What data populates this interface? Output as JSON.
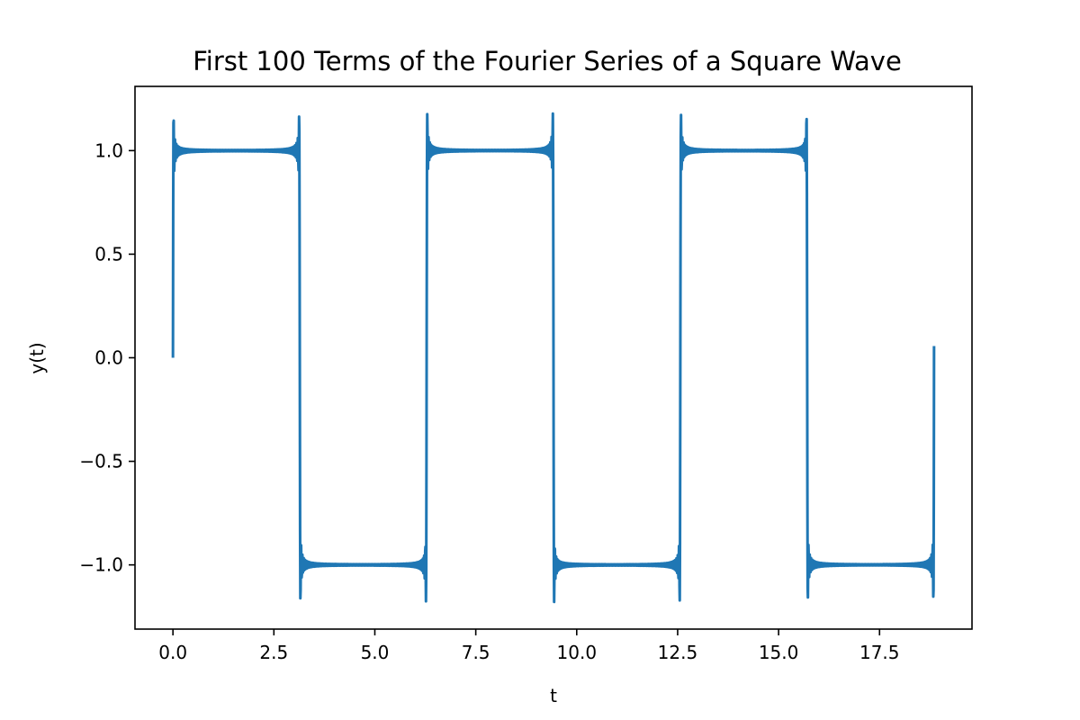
{
  "chart_data": {
    "type": "line",
    "title": "First 100 Terms of the Fourier Series of a Square Wave",
    "xlabel": "t",
    "ylabel": "y(t)",
    "xlim": [
      -0.94,
      19.79
    ],
    "ylim": [
      -1.31,
      1.31
    ],
    "x_ticks": [
      {
        "value": 0.0,
        "label": "0.0"
      },
      {
        "value": 2.5,
        "label": "2.5"
      },
      {
        "value": 5.0,
        "label": "5.0"
      },
      {
        "value": 7.5,
        "label": "7.5"
      },
      {
        "value": 10.0,
        "label": "10.0"
      },
      {
        "value": 12.5,
        "label": "12.5"
      },
      {
        "value": 15.0,
        "label": "15.0"
      },
      {
        "value": 17.5,
        "label": "17.5"
      }
    ],
    "y_ticks": [
      {
        "value": -1.0,
        "label": "−1.0"
      },
      {
        "value": -0.5,
        "label": "−0.5"
      },
      {
        "value": 0.0,
        "label": "0.0"
      },
      {
        "value": 0.5,
        "label": "0.5"
      },
      {
        "value": 1.0,
        "label": "1.0"
      }
    ],
    "grid": false,
    "series": [
      {
        "color": "#1f77b4",
        "function": "(4/pi) * sum_{k=1..100} sin((2k-1) t) / (2k-1)",
        "terms": 100,
        "t_start": 0.0,
        "t_end": 18.85,
        "samples": 3000
      }
    ]
  }
}
